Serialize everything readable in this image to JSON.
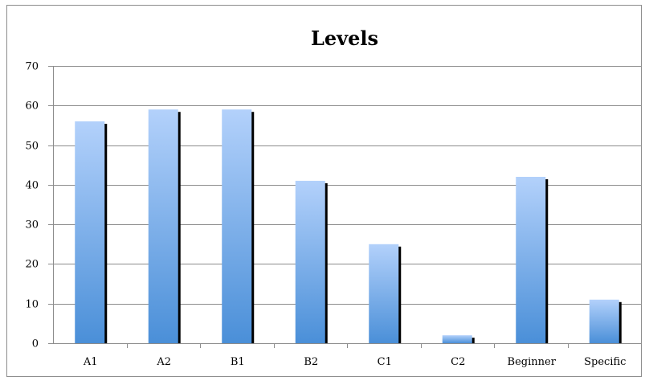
{
  "chart_data": {
    "type": "bar",
    "title": "Levels",
    "xlabel": "",
    "ylabel": "",
    "categories": [
      "A1",
      "A2",
      "B1",
      "B2",
      "C1",
      "C2",
      "Beginner",
      "Specific"
    ],
    "values": [
      56,
      59,
      59,
      41,
      25,
      2,
      42,
      11
    ],
    "ylim": [
      0,
      70
    ],
    "yticks": [
      "0",
      "10",
      "20",
      "30",
      "40",
      "50",
      "60",
      "70"
    ],
    "grid": true,
    "legend": "none",
    "colors": {
      "bar_top": "#b3d1fb",
      "bar_bottom": "#4a8fd8",
      "bar_shadow": "#000000",
      "grid": "#8c8c8c",
      "axis": "#8c8c8c",
      "border": "#8c8c8c"
    }
  }
}
